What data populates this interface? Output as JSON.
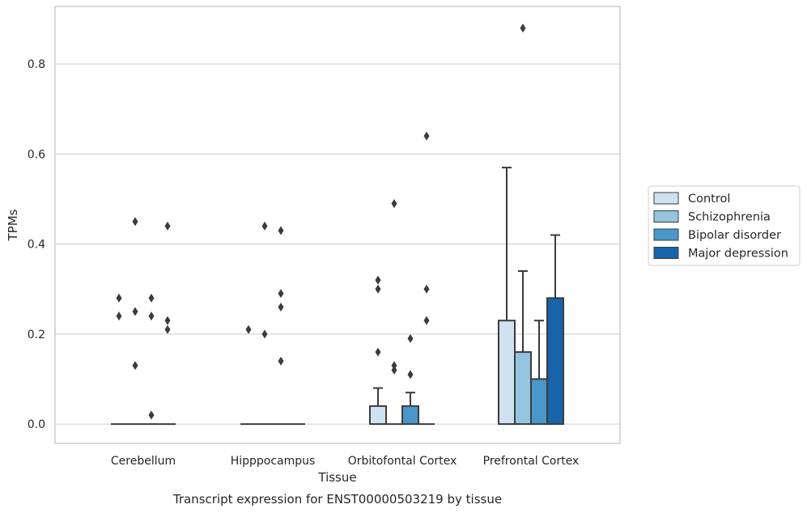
{
  "chart_data": {
    "type": "bar",
    "title": "",
    "caption": "Transcript expression for ENST00000503219 by tissue",
    "xlabel": "Tissue",
    "ylabel": "TPMs",
    "ylim": [
      -0.043,
      0.928
    ],
    "yticks": [
      "0.0",
      "0.2",
      "0.4",
      "0.6",
      "0.8"
    ],
    "ytick_values": [
      0.0,
      0.2,
      0.4,
      0.6,
      0.8
    ],
    "grid": true,
    "legend_position": "right",
    "categories": [
      "Cerebellum",
      "Hipppocampus",
      "Orbitofontal Cortex",
      "Prefrontal Cortex"
    ],
    "series": [
      {
        "name": "Control",
        "color": "#d0e1f2",
        "values": [
          0.0,
          0.0,
          0.04,
          0.23
        ],
        "whisker_top": [
          0.0,
          0.0,
          0.08,
          0.57
        ],
        "outliers": [
          [
            0.28,
            0.24
          ],
          [
            0.21
          ],
          [
            0.32,
            0.3,
            0.16
          ],
          []
        ]
      },
      {
        "name": "Schizophrenia",
        "color": "#94c4df",
        "values": [
          0.0,
          0.0,
          0.0,
          0.16
        ],
        "whisker_top": [
          0.0,
          0.0,
          0.0,
          0.34
        ],
        "outliers": [
          [
            0.45,
            0.25,
            0.13
          ],
          [
            0.44,
            0.2
          ],
          [
            0.49,
            0.13,
            0.12
          ],
          [
            0.88
          ]
        ]
      },
      {
        "name": "Bipolar disorder",
        "color": "#4a98c9",
        "values": [
          0.0,
          0.0,
          0.04,
          0.1
        ],
        "whisker_top": [
          0.0,
          0.0,
          0.07,
          0.23
        ],
        "outliers": [
          [
            0.28,
            0.24,
            0.02
          ],
          [
            0.43,
            0.29,
            0.26,
            0.14
          ],
          [
            0.19,
            0.11
          ],
          []
        ]
      },
      {
        "name": "Major depression",
        "color": "#1764ab",
        "values": [
          0.0,
          0.0,
          0.0,
          0.28
        ],
        "whisker_top": [
          0.0,
          0.0,
          0.0,
          0.42
        ],
        "outliers": [
          [
            0.44,
            0.23,
            0.21
          ],
          [],
          [
            0.64,
            0.3,
            0.23
          ],
          []
        ]
      }
    ]
  }
}
